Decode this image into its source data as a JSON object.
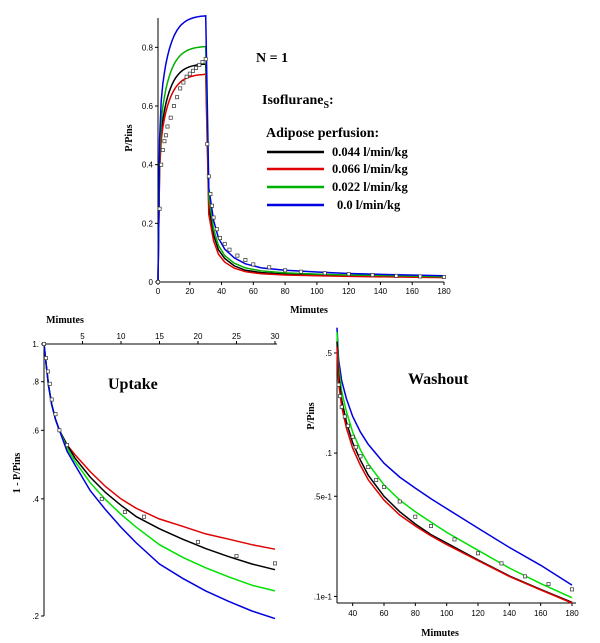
{
  "chart_data": [
    {
      "id": "main",
      "type": "line",
      "xlabel": "Mimutes",
      "ylabel": "P/Pins",
      "xlim": [
        0,
        180
      ],
      "ylim": [
        0,
        0.9
      ],
      "x_ticks": [
        0,
        20,
        40,
        60,
        80,
        100,
        120,
        140,
        160,
        180
      ],
      "y_ticks": [
        0,
        0.2,
        0.4,
        0.6,
        0.8
      ],
      "y_tick_labels": [
        "0",
        "0.2",
        "0.4",
        "0.6",
        "0.8"
      ],
      "annotations": {
        "n_label": "N = 1",
        "agent_prefix": "Isoflurane",
        "agent_subscript": "S",
        "agent_suffix": ":",
        "legend_title": "Adipose perfusion:"
      },
      "series": [
        {
          "name": "0.044 l/min/kg",
          "color": "#000000",
          "ss": 0.745,
          "tail": [
            0.745,
            0.26,
            0.16,
            0.11,
            0.08,
            0.055,
            0.04,
            0.032,
            0.027,
            0.024,
            0.021,
            0.019,
            0.016
          ]
        },
        {
          "name": "0.066 l/min/kg",
          "color": "#e00000",
          "ss": 0.71,
          "tail": [
            0.71,
            0.23,
            0.14,
            0.095,
            0.068,
            0.047,
            0.035,
            0.028,
            0.024,
            0.021,
            0.019,
            0.017,
            0.015
          ]
        },
        {
          "name": "0.022 l/min/kg",
          "color": "#00b000",
          "ss": 0.805,
          "tail": [
            0.805,
            0.29,
            0.18,
            0.125,
            0.09,
            0.064,
            0.048,
            0.038,
            0.031,
            0.027,
            0.024,
            0.021,
            0.018
          ]
        },
        {
          "name": "0.0 l/min/kg",
          "color": "#0000e0",
          "ss": 0.91,
          "tail": [
            0.91,
            0.32,
            0.21,
            0.15,
            0.112,
            0.082,
            0.062,
            0.048,
            0.04,
            0.034,
            0.029,
            0.025,
            0.021
          ]
        }
      ],
      "observed_points": {
        "x": [
          0,
          1,
          2,
          3,
          4,
          5,
          6,
          8,
          10,
          12,
          14,
          16,
          18,
          20,
          22,
          24,
          26,
          28,
          30,
          31,
          32,
          33,
          34,
          35,
          37,
          39,
          42,
          45,
          50,
          55,
          60,
          70,
          80,
          90,
          105,
          120,
          135,
          150,
          165,
          180
        ],
        "y": [
          0,
          0.25,
          0.4,
          0.45,
          0.48,
          0.5,
          0.53,
          0.56,
          0.6,
          0.63,
          0.66,
          0.68,
          0.7,
          0.71,
          0.72,
          0.73,
          0.74,
          0.75,
          0.76,
          0.47,
          0.36,
          0.3,
          0.26,
          0.22,
          0.18,
          0.15,
          0.13,
          0.11,
          0.09,
          0.075,
          0.06,
          0.05,
          0.04,
          0.035,
          0.03,
          0.027,
          0.024,
          0.021,
          0.019,
          0.017
        ]
      }
    },
    {
      "id": "uptake",
      "type": "line",
      "title": "Uptake",
      "xlabel": "Mimutes",
      "ylabel": "1 - P/Pins",
      "xlim": [
        0,
        30
      ],
      "ylim": [
        0.2,
        1.0
      ],
      "y_scale": "log",
      "x_ticks": [
        5,
        10,
        15,
        20,
        25,
        30
      ],
      "y_ticks": [
        1.0,
        0.8,
        0.6,
        0.4,
        0.2
      ],
      "y_tick_labels": [
        "1.",
        ".8",
        ".6",
        ".4",
        ".2"
      ],
      "series": [
        {
          "name": "0.066 l/min/kg",
          "color": "#e00000",
          "x": [
            0,
            0.3,
            0.6,
            1,
            1.5,
            2,
            3,
            4,
            6,
            8,
            10,
            12,
            15,
            18,
            21,
            24,
            27,
            30
          ],
          "y": [
            1.0,
            0.88,
            0.78,
            0.7,
            0.64,
            0.6,
            0.55,
            0.52,
            0.47,
            0.43,
            0.4,
            0.378,
            0.355,
            0.34,
            0.325,
            0.315,
            0.305,
            0.297
          ]
        },
        {
          "name": "0.044 l/min/kg",
          "color": "#000000",
          "x": [
            0,
            0.3,
            0.6,
            1,
            1.5,
            2,
            3,
            4,
            6,
            8,
            10,
            12,
            15,
            18,
            21,
            24,
            27,
            30
          ],
          "y": [
            1.0,
            0.88,
            0.78,
            0.7,
            0.64,
            0.6,
            0.55,
            0.51,
            0.455,
            0.415,
            0.385,
            0.36,
            0.335,
            0.315,
            0.298,
            0.284,
            0.272,
            0.263
          ]
        },
        {
          "name": "0.022 l/min/kg",
          "color": "#00e000",
          "x": [
            0,
            0.3,
            0.6,
            1,
            1.5,
            2,
            3,
            4,
            6,
            8,
            10,
            12,
            15,
            18,
            21,
            24,
            27,
            30
          ],
          "y": [
            1.0,
            0.88,
            0.78,
            0.7,
            0.64,
            0.6,
            0.54,
            0.5,
            0.44,
            0.398,
            0.365,
            0.338,
            0.305,
            0.283,
            0.266,
            0.252,
            0.24,
            0.232
          ]
        },
        {
          "name": "0.0 l/min/kg",
          "color": "#0000e0",
          "x": [
            0,
            0.3,
            0.6,
            1,
            1.5,
            2,
            3,
            4,
            6,
            8,
            10,
            12,
            15,
            18,
            21,
            24,
            27,
            30
          ],
          "y": [
            1.0,
            0.88,
            0.78,
            0.7,
            0.64,
            0.6,
            0.53,
            0.49,
            0.42,
            0.375,
            0.338,
            0.308,
            0.272,
            0.25,
            0.232,
            0.218,
            0.206,
            0.197
          ]
        }
      ],
      "observed_points": {
        "x": [
          0,
          0.25,
          0.5,
          0.75,
          1,
          1.5,
          2,
          3,
          7.5,
          10.5,
          13,
          20,
          25,
          30
        ],
        "y": [
          1.0,
          0.92,
          0.85,
          0.79,
          0.72,
          0.66,
          0.6,
          0.55,
          0.4,
          0.37,
          0.36,
          0.31,
          0.285,
          0.273
        ]
      }
    },
    {
      "id": "washout",
      "type": "line",
      "title": "Washout",
      "xlabel": "Mimutes",
      "ylabel": "P/Pins",
      "xlim": [
        30,
        180
      ],
      "ylim": [
        0.009,
        0.7
      ],
      "y_scale": "log",
      "x_ticks": [
        40,
        60,
        80,
        100,
        120,
        140,
        160,
        180
      ],
      "y_ticks": [
        0.5,
        0.1,
        0.05,
        0.01
      ],
      "y_tick_labels": [
        ".5",
        ".1",
        ".5e-1",
        ".1e-1"
      ],
      "series": [
        {
          "name": "0.0 l/min/kg",
          "color": "#0000e0",
          "x": [
            30,
            31,
            33,
            36,
            40,
            45,
            50,
            60,
            70,
            80,
            90,
            100,
            120,
            140,
            160,
            180
          ],
          "y": [
            0.75,
            0.45,
            0.32,
            0.24,
            0.18,
            0.14,
            0.115,
            0.085,
            0.068,
            0.057,
            0.048,
            0.041,
            0.03,
            0.022,
            0.0165,
            0.012
          ]
        },
        {
          "name": "0.022 l/min/kg",
          "color": "#00e000",
          "x": [
            30,
            31,
            33,
            36,
            40,
            45,
            50,
            60,
            70,
            80,
            90,
            100,
            120,
            140,
            160,
            180
          ],
          "y": [
            0.7,
            0.4,
            0.27,
            0.195,
            0.14,
            0.105,
            0.084,
            0.06,
            0.047,
            0.039,
            0.033,
            0.028,
            0.021,
            0.0158,
            0.0123,
            0.0098
          ]
        },
        {
          "name": "0.044 l/min/kg",
          "color": "#000000",
          "x": [
            30,
            31,
            33,
            36,
            40,
            45,
            50,
            60,
            70,
            80,
            90,
            100,
            120,
            140,
            160,
            180
          ],
          "y": [
            0.6,
            0.35,
            0.235,
            0.165,
            0.118,
            0.089,
            0.07,
            0.05,
            0.039,
            0.032,
            0.027,
            0.0236,
            0.018,
            0.0139,
            0.0112,
            0.0091
          ]
        },
        {
          "name": "0.066 l/min/kg",
          "color": "#e00000",
          "x": [
            30,
            31,
            33,
            36,
            40,
            45,
            50,
            60,
            70,
            80,
            90,
            100,
            120,
            140,
            160,
            180
          ],
          "y": [
            0.55,
            0.31,
            0.21,
            0.15,
            0.108,
            0.082,
            0.065,
            0.047,
            0.037,
            0.031,
            0.0265,
            0.023,
            0.0178,
            0.0138,
            0.0111,
            0.009
          ]
        }
      ],
      "observed_points": {
        "x": [
          31,
          32,
          33,
          35,
          37,
          40,
          42,
          45,
          50,
          55,
          60,
          70,
          80,
          90,
          105,
          120,
          135,
          150,
          165,
          180
        ],
        "y": [
          0.3,
          0.25,
          0.21,
          0.18,
          0.155,
          0.13,
          0.11,
          0.095,
          0.08,
          0.065,
          0.058,
          0.046,
          0.036,
          0.031,
          0.025,
          0.02,
          0.017,
          0.0138,
          0.0122,
          0.0112
        ]
      }
    }
  ]
}
